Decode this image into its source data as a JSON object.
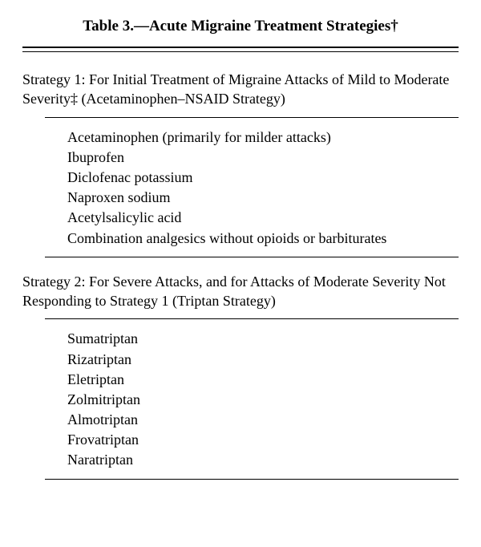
{
  "title": "Table 3.—Acute Migraine Treatment Strategies†",
  "strategies": [
    {
      "heading": "Strategy 1: For Initial Treatment of Migraine Attacks of Mild to Moderate Severity‡ (Acetaminophen–NSAID Strategy)",
      "items": [
        "Acetaminophen (primarily for milder attacks)",
        "Ibuprofen",
        "Diclofenac potassium",
        "Naproxen sodium",
        "Acetylsalicylic acid",
        "Combination analgesics without opioids or barbiturates"
      ]
    },
    {
      "heading": "Strategy 2: For Severe Attacks, and for Attacks of Moderate Severity Not Responding to Strategy 1 (Triptan Strategy)",
      "items": [
        "Sumatriptan",
        "Rizatriptan",
        "Eletriptan",
        "Zolmitriptan",
        "Almotriptan",
        "Frovatriptan",
        "Naratriptan"
      ]
    }
  ]
}
